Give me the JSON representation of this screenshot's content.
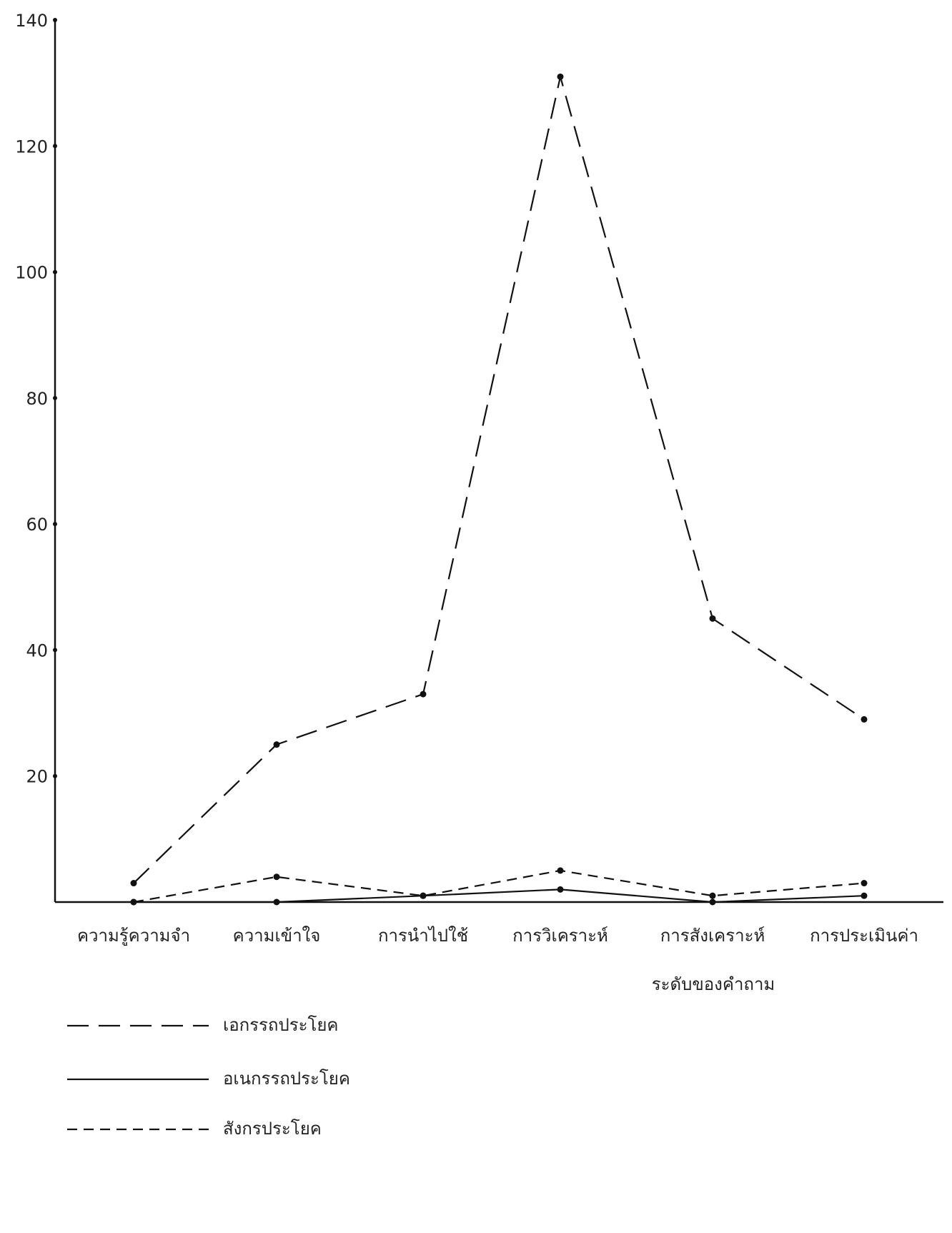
{
  "chart_data": {
    "type": "line",
    "x_label": "ระดับของคำถาม",
    "categories": [
      "ความรู้ความจำ",
      "ความเข้าใจ",
      "การนำไปใช้",
      "การวิเคราะห์",
      "การสังเคราะห์",
      "การประเมินค่า"
    ],
    "series": [
      {
        "name": "เอกรรถประโยค",
        "color": "#111111",
        "line_style": "long-dash",
        "values": [
          3,
          25,
          33,
          131,
          45,
          29
        ]
      },
      {
        "name": "อเนกรรถประโยค",
        "color": "#111111",
        "line_style": "solid",
        "values": [
          0,
          0,
          1,
          2,
          0,
          1
        ]
      },
      {
        "name": "สังกรประโยค",
        "color": "#111111",
        "line_style": "short-dash",
        "values": [
          0,
          4,
          1,
          5,
          1,
          3
        ]
      }
    ],
    "ylim": [
      0,
      140
    ],
    "yticks": [
      20,
      40,
      60,
      80,
      100,
      120,
      140
    ],
    "grid": false
  }
}
